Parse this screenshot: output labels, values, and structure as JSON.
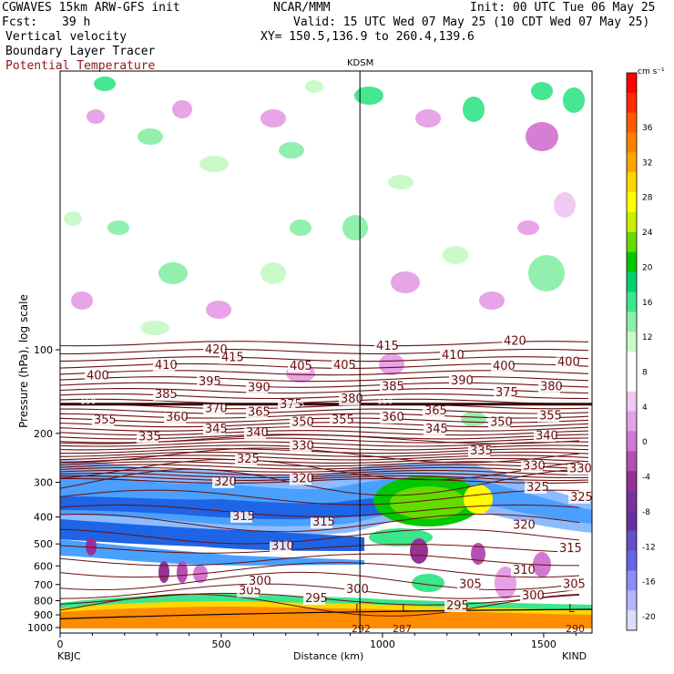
{
  "header": {
    "model": "CGWAVES 15km ARW-GFS init",
    "org": "NCAR/MMM",
    "init": "Init: 00 UTC Tue 06 May 25",
    "fcst_label": "Fcst:",
    "fcst_value": "39 h",
    "valid": "Valid: 15 UTC Wed 07 May 25 (10 CDT Wed 07 May 25)",
    "field1": "Vertical velocity",
    "xy": "XY= 150.5,136.9 to 260.4,139.6",
    "field2": "Boundary Layer Tracer",
    "field3": "Potential Temperature"
  },
  "chart_data": {
    "type": "heatmap",
    "title": "",
    "xlabel": "Distance (km)",
    "ylabel": "Pressure (hPa), log scale",
    "x_ticks": [
      "0",
      "500",
      "1000",
      "1500"
    ],
    "x_range": [
      0,
      1650
    ],
    "y_ticks": [
      "100",
      "200",
      "300",
      "400",
      "500",
      "600",
      "700",
      "800",
      "900",
      "1000"
    ],
    "y_scale": "log",
    "station_left": "KBJC",
    "station_right": "KIND",
    "station_mid": "KDSM",
    "station_mid_x_km": 930,
    "colorbar": {
      "unit": "cm s⁻¹",
      "labels": [
        "36",
        "32",
        "28",
        "24",
        "20",
        "16",
        "12",
        "8",
        "4",
        "0",
        "-4",
        "-8",
        "-12",
        "-16",
        "-20"
      ],
      "colors": [
        "#ff0000",
        "#ff2a00",
        "#ff5a00",
        "#ff7f00",
        "#ffa500",
        "#ffd700",
        "#ffff00",
        "#c8f000",
        "#64dc00",
        "#00c800",
        "#00d26e",
        "#3ce68c",
        "#8cf0aa",
        "#c8fac8",
        "#ffffff",
        "#ffffff",
        "#f0c8f0",
        "#e6a0e6",
        "#d278d2",
        "#b450b4",
        "#963296",
        "#7832a0",
        "#6432a0",
        "#6450c8",
        "#6464e6",
        "#8c8cff",
        "#b4b4ff",
        "#dcdcff"
      ]
    },
    "theta_labels": [
      {
        "v": "420",
        "x": 225,
        "p": 103
      },
      {
        "v": "415",
        "x": 243,
        "p": 110
      },
      {
        "v": "410",
        "x": 170,
        "p": 117
      },
      {
        "v": "405",
        "x": 318,
        "p": 118
      },
      {
        "v": "405",
        "x": 366,
        "p": 117
      },
      {
        "v": "400",
        "x": 95,
        "p": 128
      },
      {
        "v": "395",
        "x": 218,
        "p": 134
      },
      {
        "v": "390",
        "x": 272,
        "p": 141
      },
      {
        "v": "385",
        "x": 170,
        "p": 149
      },
      {
        "v": "380",
        "x": 374,
        "p": 155
      },
      {
        "v": "375",
        "x": 307,
        "p": 162
      },
      {
        "v": "370",
        "x": 225,
        "p": 168
      },
      {
        "v": "365",
        "x": 272,
        "p": 173
      },
      {
        "v": "360",
        "x": 182,
        "p": 180
      },
      {
        "v": "355",
        "x": 103,
        "p": 184
      },
      {
        "v": "355",
        "x": 364,
        "p": 184
      },
      {
        "v": "350",
        "x": 320,
        "p": 188
      },
      {
        "v": "345",
        "x": 225,
        "p": 199
      },
      {
        "v": "340",
        "x": 270,
        "p": 205
      },
      {
        "v": "335",
        "x": 152,
        "p": 212
      },
      {
        "v": "330",
        "x": 320,
        "p": 229
      },
      {
        "v": "325",
        "x": 260,
        "p": 255
      },
      {
        "v": "320",
        "x": 235,
        "p": 308
      },
      {
        "v": "320",
        "x": 320,
        "p": 300
      },
      {
        "v": "315",
        "x": 255,
        "p": 410
      },
      {
        "v": "315",
        "x": 343,
        "p": 430
      },
      {
        "v": "310",
        "x": 298,
        "p": 525
      },
      {
        "v": "305",
        "x": 262,
        "p": 760
      },
      {
        "v": "300",
        "x": 273,
        "p": 700
      },
      {
        "v": "300",
        "x": 380,
        "p": 750
      },
      {
        "v": "295",
        "x": 335,
        "p": 810
      },
      {
        "v": "415",
        "x": 413,
        "p": 100
      },
      {
        "v": "410",
        "x": 485,
        "p": 108
      },
      {
        "v": "420",
        "x": 553,
        "p": 96
      },
      {
        "v": "400",
        "x": 541,
        "p": 118
      },
      {
        "v": "400",
        "x": 612,
        "p": 114
      },
      {
        "v": "390",
        "x": 495,
        "p": 133
      },
      {
        "v": "385",
        "x": 419,
        "p": 140
      },
      {
        "v": "380",
        "x": 593,
        "p": 140
      },
      {
        "v": "375",
        "x": 544,
        "p": 147
      },
      {
        "v": "365",
        "x": 466,
        "p": 171
      },
      {
        "v": "360",
        "x": 419,
        "p": 180
      },
      {
        "v": "355",
        "x": 592,
        "p": 178
      },
      {
        "v": "350",
        "x": 538,
        "p": 188
      },
      {
        "v": "345",
        "x": 467,
        "p": 199
      },
      {
        "v": "340",
        "x": 588,
        "p": 210
      },
      {
        "v": "335",
        "x": 516,
        "p": 238
      },
      {
        "v": "330",
        "x": 574,
        "p": 270
      },
      {
        "v": "330",
        "x": 625,
        "p": 276
      },
      {
        "v": "325",
        "x": 578,
        "p": 322
      },
      {
        "v": "325",
        "x": 626,
        "p": 350
      },
      {
        "v": "320",
        "x": 563,
        "p": 440
      },
      {
        "v": "315",
        "x": 614,
        "p": 535
      },
      {
        "v": "310",
        "x": 563,
        "p": 640
      },
      {
        "v": "305",
        "x": 504,
        "p": 720
      },
      {
        "v": "305",
        "x": 618,
        "p": 720
      },
      {
        "v": "300",
        "x": 573,
        "p": 790
      },
      {
        "v": "295",
        "x": 490,
        "p": 860
      }
    ],
    "line_labels": [
      {
        "v": "150",
        "x": 88,
        "p": 157
      },
      {
        "v": "375",
        "x": 317,
        "p": 160
      },
      {
        "v": "150",
        "x": 414,
        "p": 157
      }
    ],
    "low_markers": [
      {
        "v": "L",
        "x": 390,
        "p": 880
      },
      {
        "v": "L",
        "x": 441,
        "p": 880
      },
      {
        "v": "L",
        "x": 624,
        "p": 880
      }
    ],
    "bottom_values": [
      {
        "v": "292",
        "x": 392
      },
      {
        "v": "287",
        "x": 437
      },
      {
        "v": "290",
        "x": 627
      }
    ]
  }
}
